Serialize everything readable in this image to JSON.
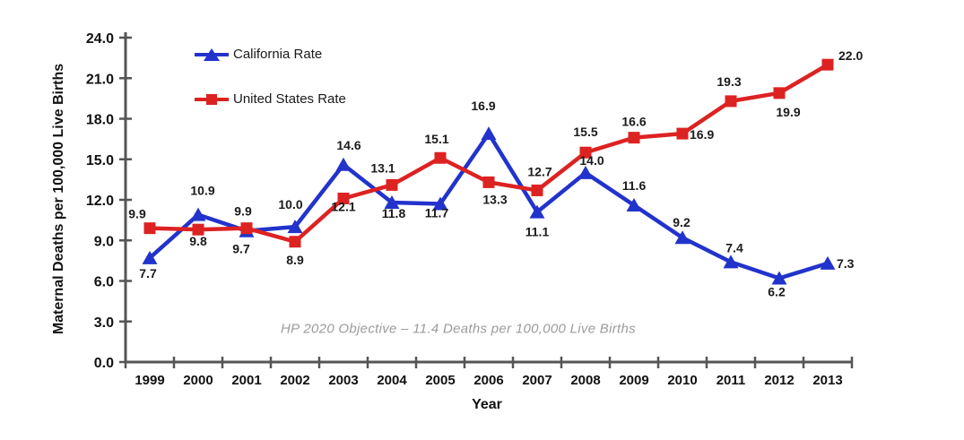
{
  "chart_data": {
    "type": "line",
    "categories": [
      "1999",
      "2000",
      "2001",
      "2002",
      "2003",
      "2004",
      "2005",
      "2006",
      "2007",
      "2008",
      "2009",
      "2010",
      "2011",
      "2012",
      "2013"
    ],
    "series": [
      {
        "name": "California Rate",
        "color": "#2233CC",
        "marker": "triangle",
        "values": [
          7.7,
          10.9,
          9.7,
          10.0,
          14.6,
          11.8,
          11.7,
          16.9,
          11.1,
          14.0,
          11.6,
          9.2,
          7.4,
          6.2,
          7.3
        ],
        "label_offsets": [
          [
            -2,
            22
          ],
          [
            5,
            -22
          ],
          [
            -6,
            25
          ],
          [
            -5,
            -20
          ],
          [
            6,
            -17
          ],
          [
            2,
            17
          ],
          [
            -4,
            15
          ],
          [
            -6,
            -26
          ],
          [
            0,
            27
          ],
          [
            7,
            -9
          ],
          [
            0,
            -17
          ],
          [
            -1,
            -12
          ],
          [
            4,
            -11
          ],
          [
            -3,
            20
          ],
          [
            10,
            5,
            "start"
          ]
        ]
      },
      {
        "name": "United States Rate",
        "color": "#DD2222",
        "marker": "square",
        "values": [
          9.9,
          9.8,
          9.9,
          8.9,
          12.1,
          13.1,
          15.1,
          13.3,
          12.7,
          15.5,
          16.6,
          16.9,
          19.3,
          19.9,
          22.0
        ],
        "label_offsets": [
          [
            -14,
            -11
          ],
          [
            0,
            18
          ],
          [
            -4,
            -14
          ],
          [
            0,
            25
          ],
          [
            0,
            14
          ],
          [
            -10,
            -14
          ],
          [
            -4,
            -16
          ],
          [
            7,
            24
          ],
          [
            3,
            -16
          ],
          [
            0,
            -18
          ],
          [
            0,
            -13
          ],
          [
            8,
            6,
            "start"
          ],
          [
            -2,
            -17
          ],
          [
            10,
            26
          ],
          [
            12,
            -5,
            "start"
          ]
        ]
      }
    ],
    "xlabel": "Year",
    "ylabel": "Maternal Deaths per 100,000 Live Births",
    "ylim": [
      0,
      24
    ],
    "ytick_step": 3,
    "ytick_format": "one-decimal",
    "grid": false,
    "legend_position": "top-left-inside",
    "annotation": "HP 2020 Objective – 11.4 Deaths per 100,000 Live Births",
    "axis_color": "#555555",
    "tick_label_color": "#111111",
    "data_label_color": "#1a1a1a",
    "annotation_color": "#9b9b9b",
    "background_color": "#ffffff"
  }
}
